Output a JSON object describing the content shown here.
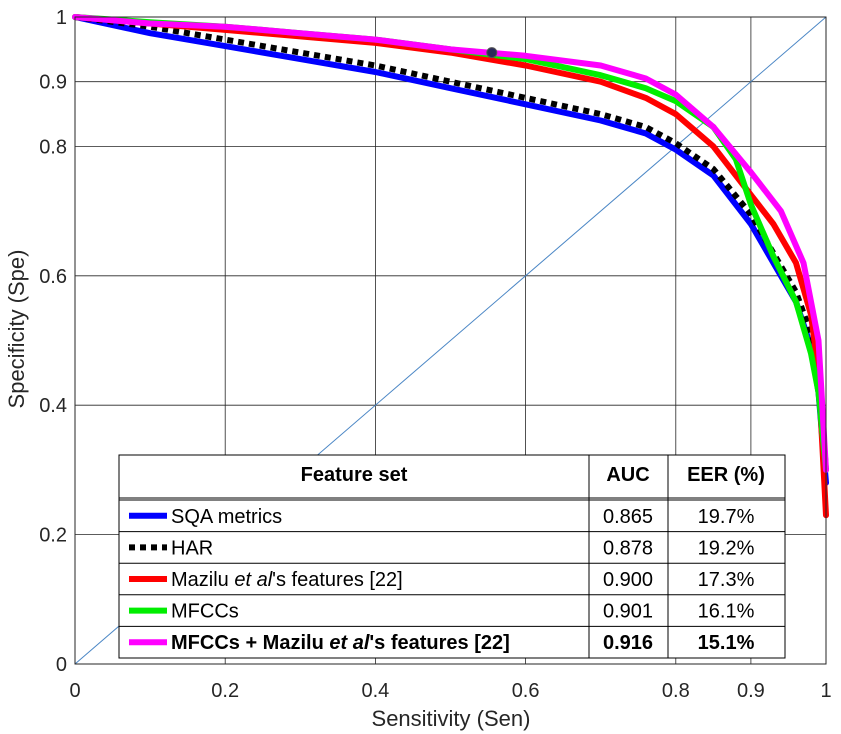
{
  "chart_data": {
    "type": "line",
    "title": "",
    "xlabel": "Sensitivity (Sen)",
    "ylabel": "Specificity (Spe)",
    "xlim": [
      0,
      1
    ],
    "ylim": [
      0,
      1
    ],
    "grid": true,
    "x_ticks": [
      {
        "value": 0,
        "label": "0"
      },
      {
        "value": 0.2,
        "label": "0.2"
      },
      {
        "value": 0.4,
        "label": "0.4"
      },
      {
        "value": 0.6,
        "label": "0.6"
      },
      {
        "value": 0.8,
        "label": "0.8"
      },
      {
        "value": 0.9,
        "label": "0.9"
      },
      {
        "value": 1,
        "label": "1"
      }
    ],
    "y_ticks": [
      {
        "value": 0,
        "label": "0"
      },
      {
        "value": 0.2,
        "label": "0.2"
      },
      {
        "value": 0.4,
        "label": "0.4"
      },
      {
        "value": 0.6,
        "label": "0.6"
      },
      {
        "value": 0.8,
        "label": "0.8"
      },
      {
        "value": 0.9,
        "label": "0.9"
      },
      {
        "value": 1,
        "label": "1"
      }
    ],
    "diagonal": {
      "x": [
        0,
        1
      ],
      "y": [
        0,
        1
      ],
      "color": "#4a86c5"
    },
    "marker": {
      "x": 0.555,
      "y": 0.945
    },
    "series": [
      {
        "name": "SQA metrics",
        "color": "#0000ff",
        "dash": false,
        "x": [
          0,
          0.1,
          0.2,
          0.3,
          0.4,
          0.5,
          0.6,
          0.7,
          0.76,
          0.8,
          0.85,
          0.9,
          0.93,
          0.96,
          0.98,
          0.99,
          1.0
        ],
        "y": [
          1.0,
          0.975,
          0.955,
          0.935,
          0.915,
          0.89,
          0.865,
          0.84,
          0.82,
          0.795,
          0.755,
          0.68,
          0.62,
          0.56,
          0.49,
          0.42,
          0.28
        ]
      },
      {
        "name": "HAR",
        "color": "#000000",
        "dash": true,
        "x": [
          0,
          0.1,
          0.2,
          0.3,
          0.4,
          0.5,
          0.6,
          0.7,
          0.76,
          0.8,
          0.85,
          0.9,
          0.93,
          0.96,
          0.98,
          0.99,
          1.0
        ],
        "y": [
          1.0,
          0.985,
          0.965,
          0.945,
          0.925,
          0.9,
          0.875,
          0.85,
          0.83,
          0.805,
          0.765,
          0.695,
          0.635,
          0.575,
          0.51,
          0.45,
          0.3
        ]
      },
      {
        "name": "Mazilu et al's features [22]",
        "color": "#ff0000",
        "dash": false,
        "x": [
          0,
          0.1,
          0.2,
          0.3,
          0.4,
          0.5,
          0.6,
          0.7,
          0.76,
          0.8,
          0.85,
          0.9,
          0.93,
          0.96,
          0.98,
          0.99,
          1.0
        ],
        "y": [
          1.0,
          0.99,
          0.98,
          0.97,
          0.96,
          0.945,
          0.925,
          0.9,
          0.875,
          0.85,
          0.8,
          0.725,
          0.68,
          0.62,
          0.54,
          0.45,
          0.23
        ]
      },
      {
        "name": "MFCCs",
        "color": "#00ee00",
        "dash": false,
        "x": [
          0,
          0.1,
          0.2,
          0.3,
          0.4,
          0.5,
          0.6,
          0.7,
          0.76,
          0.8,
          0.85,
          0.88,
          0.9,
          0.93,
          0.96,
          0.98,
          0.99,
          1.0
        ],
        "y": [
          1.0,
          0.992,
          0.985,
          0.975,
          0.965,
          0.95,
          0.935,
          0.91,
          0.89,
          0.87,
          0.83,
          0.78,
          0.71,
          0.63,
          0.56,
          0.48,
          0.42,
          0.3
        ]
      },
      {
        "name": "MFCCs + Mazilu et al's features [22]",
        "color": "#ff00ff",
        "dash": false,
        "x": [
          0,
          0.1,
          0.2,
          0.3,
          0.4,
          0.5,
          0.6,
          0.7,
          0.76,
          0.8,
          0.85,
          0.9,
          0.94,
          0.97,
          0.99,
          1.0
        ],
        "y": [
          1.0,
          0.99,
          0.985,
          0.975,
          0.965,
          0.95,
          0.94,
          0.925,
          0.905,
          0.88,
          0.83,
          0.76,
          0.7,
          0.62,
          0.5,
          0.3
        ]
      }
    ],
    "table": {
      "headers": [
        "Feature set",
        "AUC",
        "EER (%)"
      ],
      "rows": [
        {
          "pre": "SQA metrics",
          "italic": "",
          "post": "",
          "auc": "0.865",
          "eer": "19.7%",
          "bold": false
        },
        {
          "pre": "HAR",
          "italic": "",
          "post": "",
          "auc": "0.878",
          "eer": "19.2%",
          "bold": false
        },
        {
          "pre": "Mazilu ",
          "italic": "et al",
          "post": "'s features [22]",
          "auc": "0.900",
          "eer": "17.3%",
          "bold": false
        },
        {
          "pre": "MFCCs",
          "italic": "",
          "post": "",
          "auc": "0.901",
          "eer": "16.1%",
          "bold": false
        },
        {
          "pre": "MFCCs + Mazilu ",
          "italic": "et al",
          "post": "'s features [22]",
          "auc": "0.916",
          "eer": "15.1%",
          "bold": true
        }
      ]
    }
  }
}
